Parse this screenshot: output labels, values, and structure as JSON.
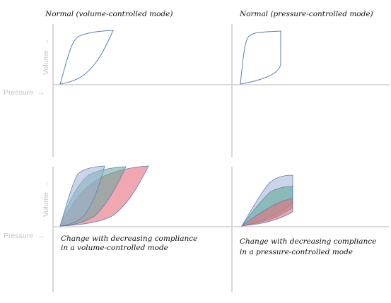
{
  "titles": {
    "top_left": "Normal (volume-controlled mode)",
    "top_right": "Normal (pressure-controlled mode)"
  },
  "axis_labels": {
    "volume": "Volume",
    "pressure": "Pressure",
    "arrow": "→"
  },
  "captions": {
    "bottom_left_line1": "Change with decreasing compliance",
    "bottom_left_line2": "in a volume-controlled mode",
    "bottom_right_line1": "Change with decreasing compliance",
    "bottom_right_line2": "in a pressure-controlled mode"
  },
  "colors": {
    "axis": "#cfcfcf",
    "label": "#c4c4c4",
    "outline": "#5b7fb3",
    "blue_fill": "#9fb4d6",
    "green_fill": "#5fa89a",
    "red_fill": "#e86d7a"
  }
}
